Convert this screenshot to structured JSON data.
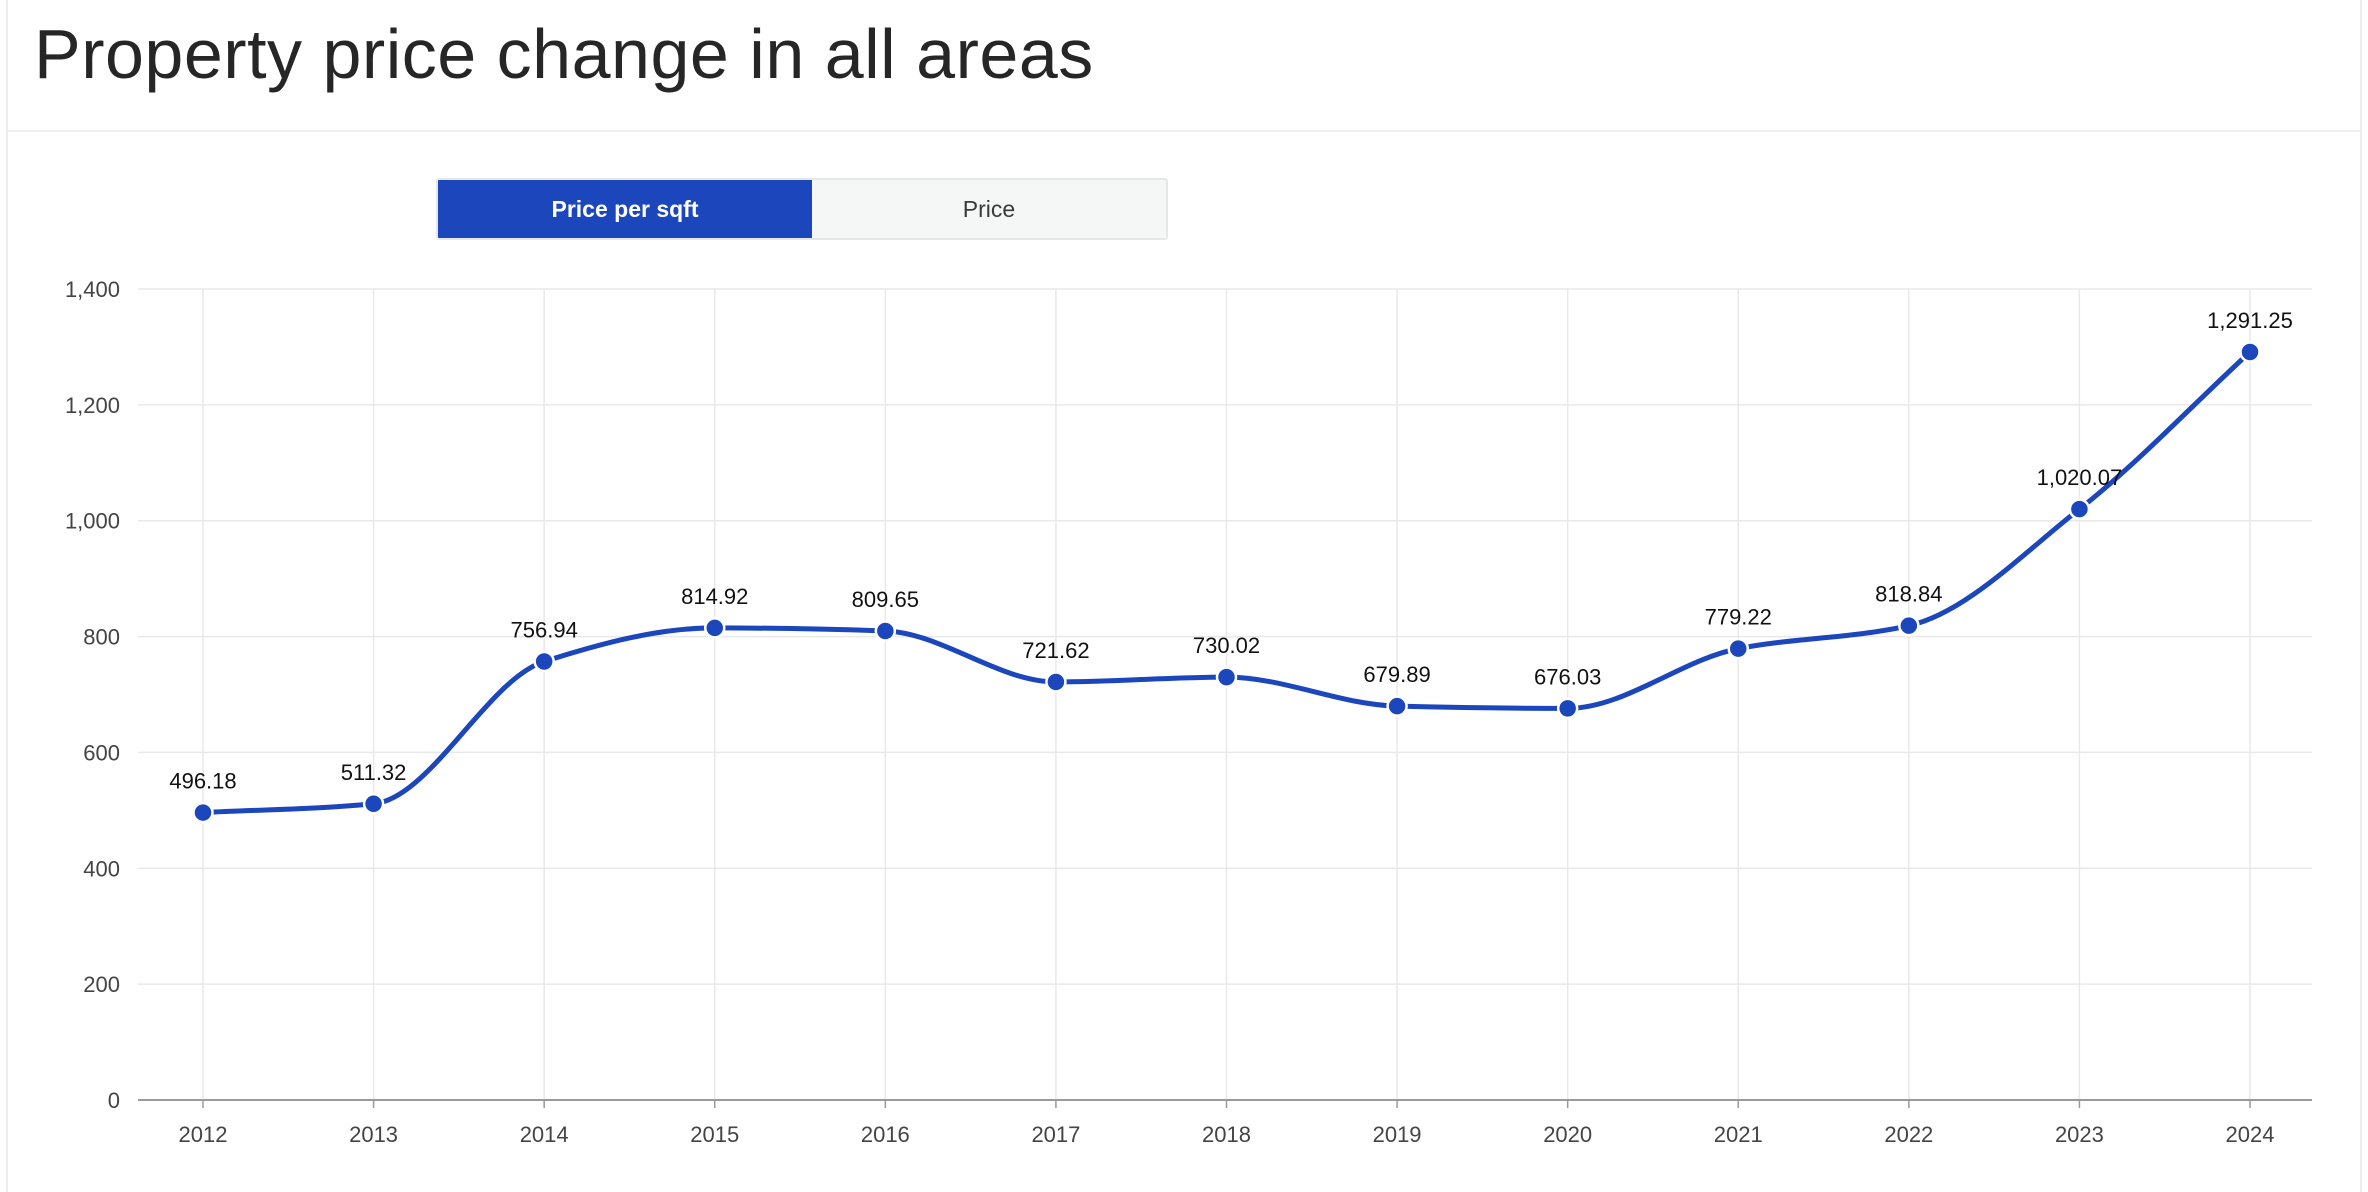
{
  "page": {
    "title": "Property price change in all areas"
  },
  "toggle": {
    "options": [
      {
        "label": "Price per sqft",
        "active": true
      },
      {
        "label": "Price",
        "active": false
      }
    ]
  },
  "colors": {
    "accent": "#1c46bb",
    "line": "#1c46bb",
    "grid": "#e9e9e9",
    "axis": "#9a9a9a"
  },
  "chart_data": {
    "type": "line",
    "title": "",
    "xlabel": "",
    "ylabel": "",
    "categories": [
      "2012",
      "2013",
      "2014",
      "2015",
      "2016",
      "2017",
      "2018",
      "2019",
      "2020",
      "2021",
      "2022",
      "2023",
      "2024"
    ],
    "series": [
      {
        "values": [
          496.18,
          511.32,
          756.94,
          814.92,
          809.65,
          721.62,
          730.02,
          679.89,
          676.03,
          779.22,
          818.84,
          1020.07,
          1291.25
        ],
        "labels": [
          "496.18",
          "511.32",
          "756.94",
          "814.92",
          "809.65",
          "721.62",
          "730.02",
          "679.89",
          "676.03",
          "779.22",
          "818.84",
          "1,020.07",
          "1,291.25"
        ]
      }
    ],
    "ylim": [
      0,
      1400
    ],
    "yticks": [
      {
        "value": 0,
        "label": "0"
      },
      {
        "value": 200,
        "label": "200"
      },
      {
        "value": 400,
        "label": "400"
      },
      {
        "value": 600,
        "label": "600"
      },
      {
        "value": 800,
        "label": "800"
      },
      {
        "value": 1000,
        "label": "1,000"
      },
      {
        "value": 1200,
        "label": "1,200"
      },
      {
        "value": 1400,
        "label": "1,400"
      }
    ],
    "grid": true,
    "smooth": true,
    "markers": true,
    "data_labels": true
  }
}
